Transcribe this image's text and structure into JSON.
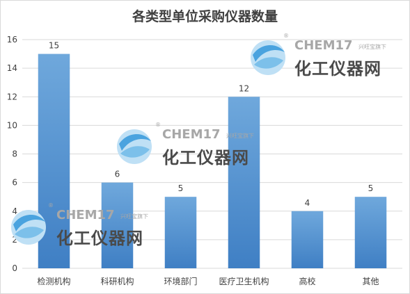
{
  "chart_data": {
    "type": "bar",
    "title": "各类型单位采购仪器数量",
    "categories": [
      "检测机构",
      "科研机构",
      "环境部门",
      "医疗卫生机构",
      "高校",
      "其他"
    ],
    "values": [
      15,
      6,
      5,
      12,
      4,
      5
    ],
    "ylim": [
      0,
      16
    ],
    "yticks": [
      0,
      2,
      4,
      6,
      8,
      10,
      12,
      14,
      16
    ],
    "grid": true,
    "data_labels": true,
    "colors": {
      "bar_top": "#6fa8dc",
      "bar_bottom": "#3f7fc4",
      "grid": "#d9d9d9",
      "text": "#404040"
    }
  },
  "watermark": {
    "brand": "CHEM17",
    "name": "化工仪器网",
    "tagline": "兴旺宝旗下",
    "registered": "®",
    "logo_icon": "globe-swirl-icon"
  }
}
